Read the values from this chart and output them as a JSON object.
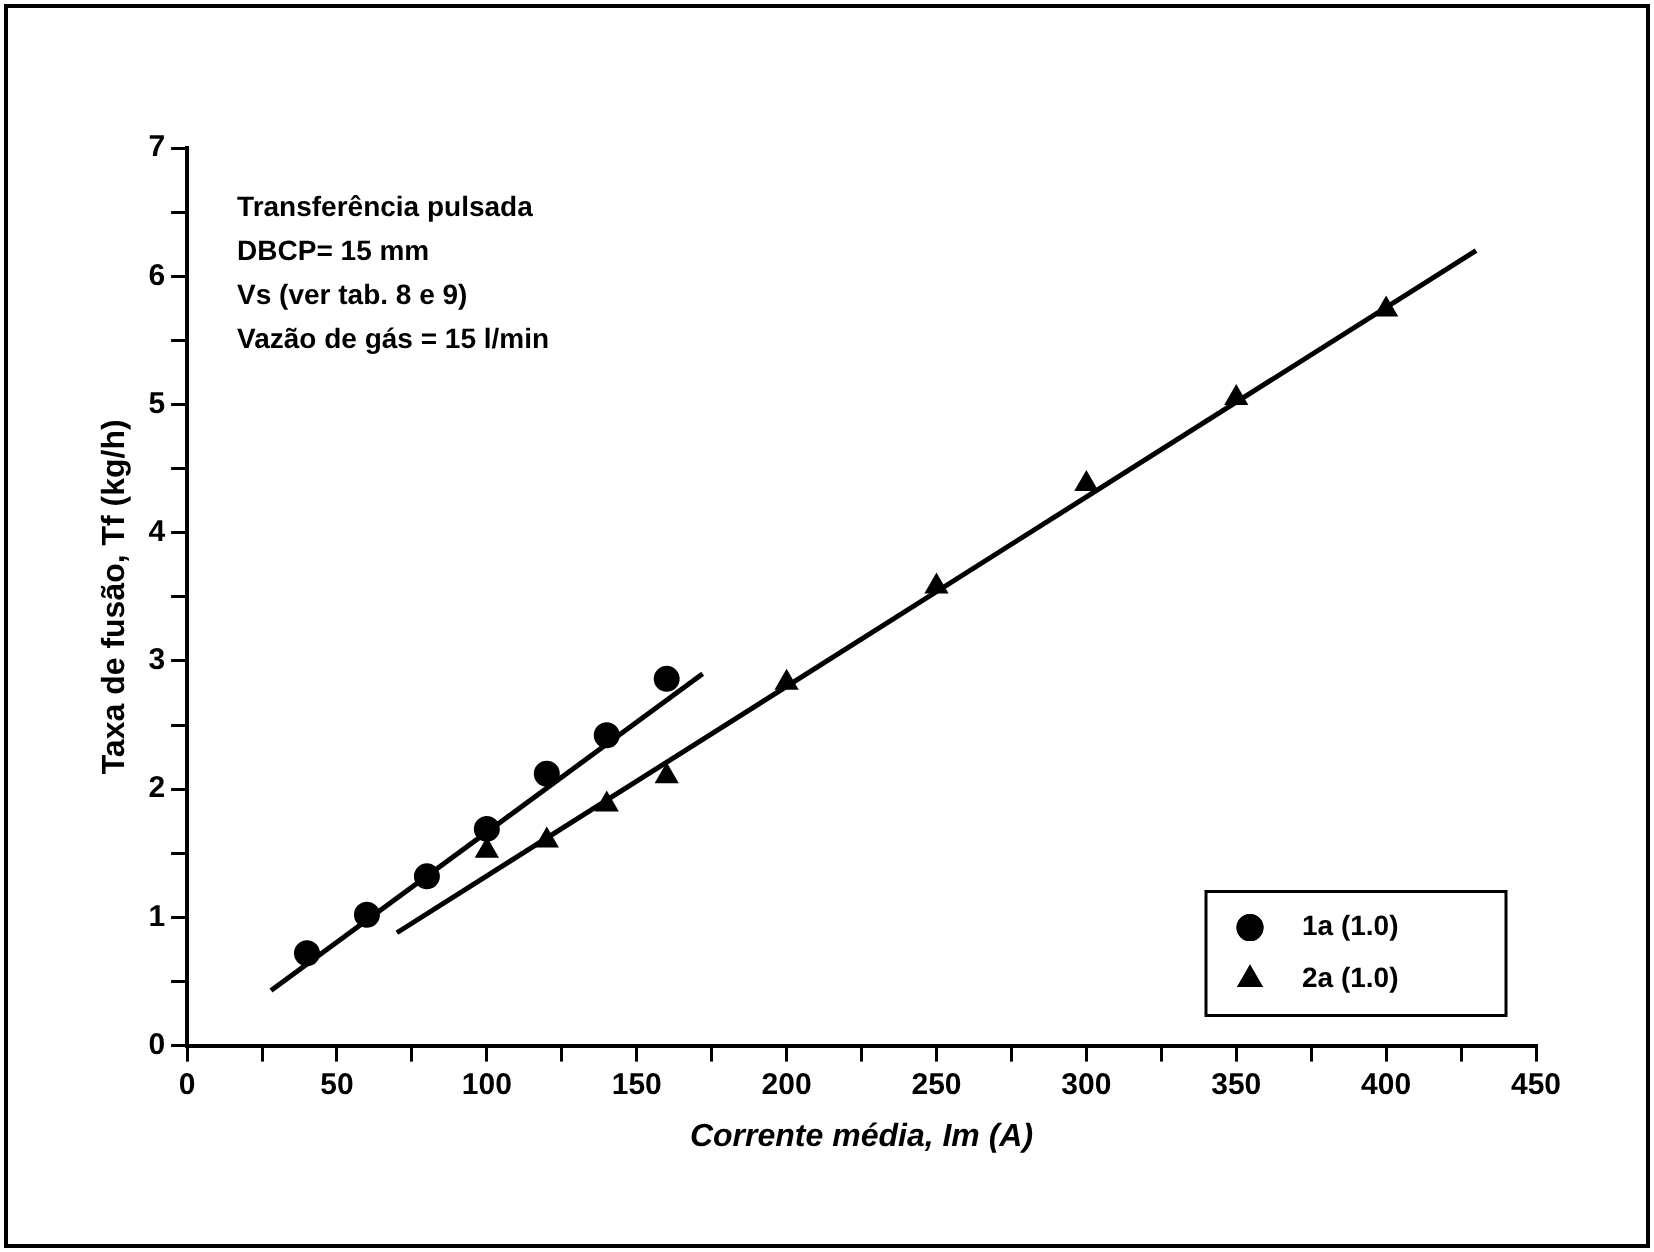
{
  "chart_data": {
    "type": "scatter",
    "xlabel": "Corrente média, Im (A)",
    "ylabel": "Taxa de fusão, Tf (kg/h)",
    "annotations": [
      "Transferência pulsada",
      "DBCP= 15 mm",
      "Vs (ver tab. 8 e 9)",
      "Vazão de gás = 15 l/min"
    ],
    "xlim": [
      0,
      450
    ],
    "xticks": [
      0,
      {
        "value": 25,
        "label": null
      },
      50,
      {
        "value": 75,
        "label": null
      },
      100,
      {
        "value": 125,
        "label": null
      },
      150,
      {
        "value": 175,
        "label": null
      },
      200,
      {
        "value": 225,
        "label": null
      },
      250,
      {
        "value": 275,
        "label": null
      },
      300,
      {
        "value": 325,
        "label": null
      },
      350,
      {
        "value": 375,
        "label": null
      },
      400,
      {
        "value": 425,
        "label": null
      },
      450
    ],
    "ylim": [
      0,
      7
    ],
    "yticks": [
      0,
      {
        "value": 0.5,
        "label": null
      },
      1,
      {
        "value": 1.5,
        "label": null
      },
      2,
      {
        "value": 2.5,
        "label": null
      },
      3,
      {
        "value": 3.5,
        "label": null
      },
      4,
      {
        "value": 4.5,
        "label": null
      },
      5,
      {
        "value": 5.5,
        "label": null
      },
      6,
      {
        "value": 6.5,
        "label": null
      },
      7
    ],
    "grid": false,
    "legend": "bottom right",
    "series": [
      {
        "name": "1a (1.0)",
        "color": "#000000",
        "marker": "circle",
        "x": [
          40,
          60,
          80,
          100,
          120,
          140,
          160
        ],
        "values": [
          0.72,
          1.02,
          1.32,
          1.69,
          2.12,
          2.42,
          2.86
        ]
      },
      {
        "name": "2a (1.0)",
        "color": "#000000",
        "marker": "triangle",
        "x": [
          100,
          120,
          140,
          160,
          200,
          250,
          300,
          350,
          400
        ],
        "values": [
          1.52,
          1.6,
          1.88,
          2.1,
          2.83,
          3.58,
          4.38,
          5.05,
          5.74
        ]
      },
      {
        "type": "line",
        "color": "#000000",
        "marker": "none",
        "line_style": "solid",
        "x": [
          28,
          172
        ],
        "values": [
          0.43,
          2.9
        ]
      },
      {
        "type": "line",
        "color": "#000000",
        "marker": "none",
        "line_style": "solid",
        "x": [
          70,
          430
        ],
        "values": [
          0.88,
          6.2
        ]
      }
    ]
  }
}
